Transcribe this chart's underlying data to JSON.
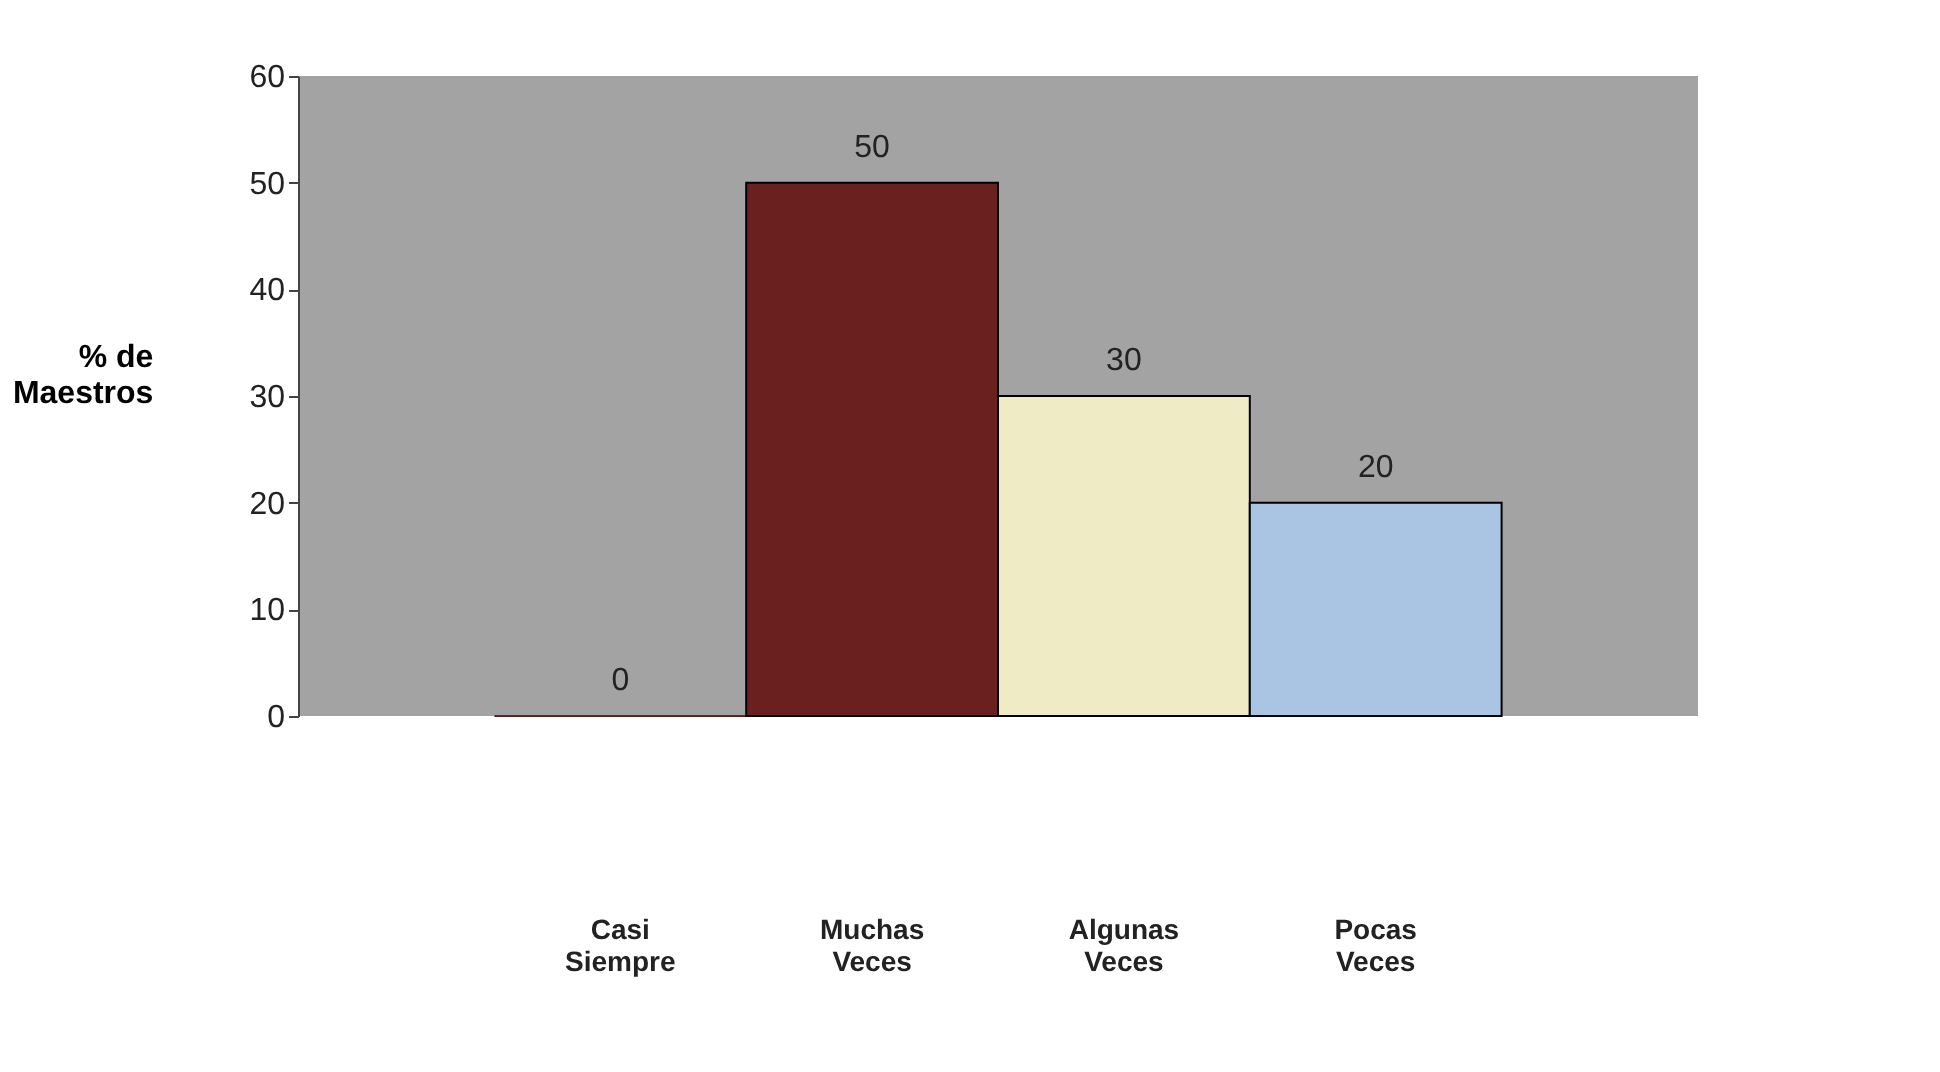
{
  "chart_data": {
    "type": "bar",
    "ylabel": "% de Maestros",
    "categories": [
      "Casi Siempre",
      "Muchas Veces",
      "Algunas Veces",
      "Pocas Veces"
    ],
    "values": [
      0,
      50,
      30,
      20
    ],
    "colors": [
      "#6b2020",
      "#6b2020",
      "#efebc4",
      "#a9c5e3"
    ],
    "ylim": [
      0,
      60
    ],
    "yticks": [
      0,
      10,
      20,
      30,
      40,
      50,
      60
    ],
    "data_labels": true,
    "grid": false
  }
}
